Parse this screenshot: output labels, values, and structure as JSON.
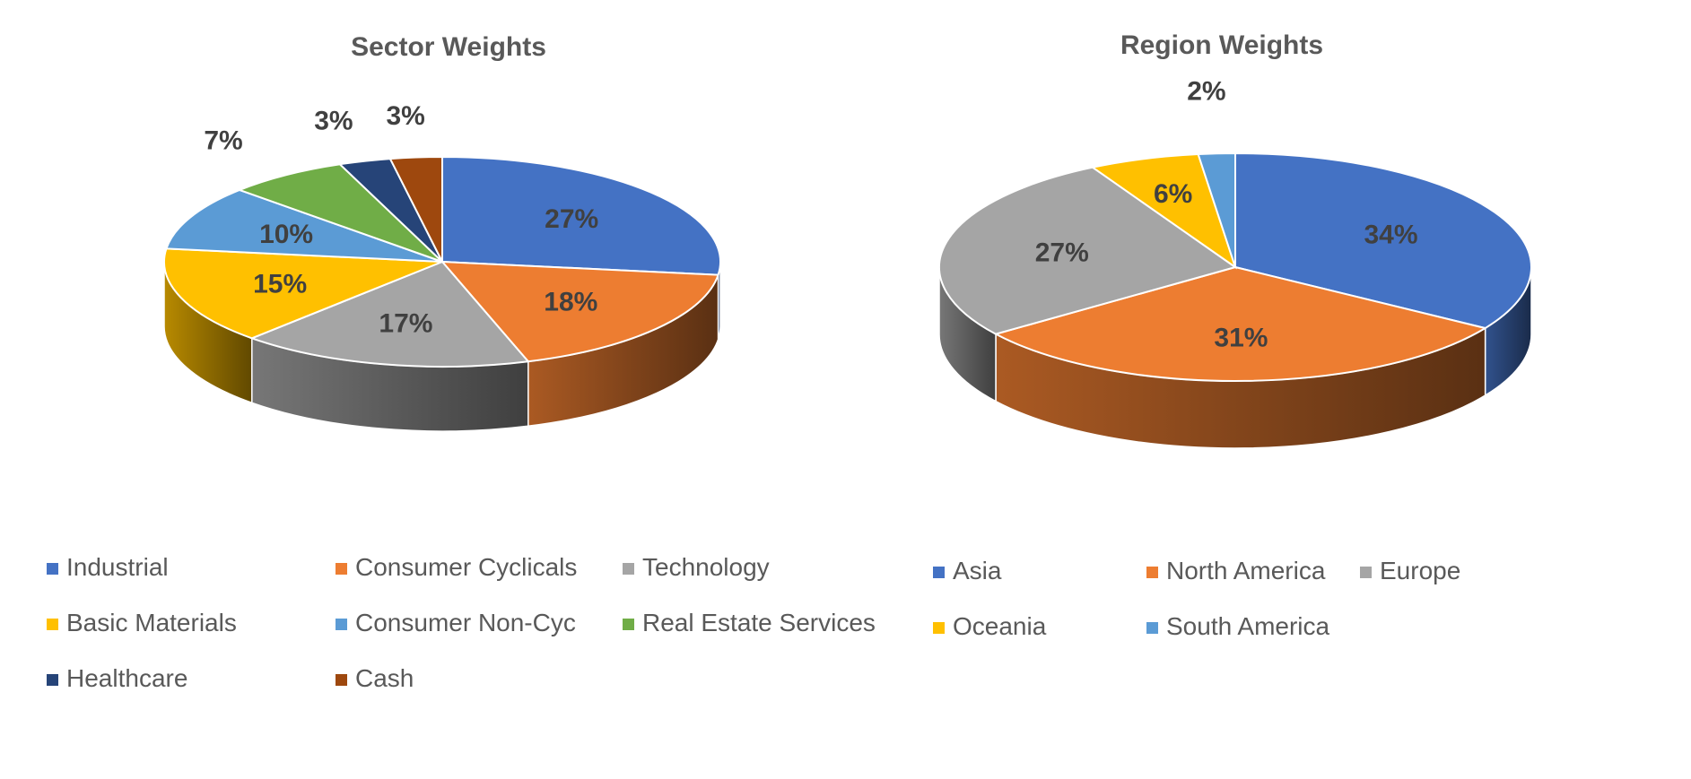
{
  "chart_data": [
    {
      "type": "pie",
      "title": "Sector Weights",
      "slices": [
        {
          "label": "Industrial",
          "value": 27,
          "display": "27%",
          "color": "#4472C4"
        },
        {
          "label": "Consumer Cyclicals",
          "value": 18,
          "display": "18%",
          "color": "#ED7D31"
        },
        {
          "label": "Technology",
          "value": 17,
          "display": "17%",
          "color": "#A5A5A5"
        },
        {
          "label": "Basic Materials",
          "value": 15,
          "display": "15%",
          "color": "#FFC000"
        },
        {
          "label": "Consumer Non-Cyc",
          "value": 10,
          "display": "10%",
          "color": "#5B9BD5"
        },
        {
          "label": "Real Estate Services",
          "value": 7,
          "display": "7%",
          "color": "#70AD47"
        },
        {
          "label": "Healthcare",
          "value": 3,
          "display": "3%",
          "color": "#264478"
        },
        {
          "label": "Cash",
          "value": 3,
          "display": "3%",
          "color": "#9E480E"
        }
      ],
      "legend_position": "bottom"
    },
    {
      "type": "pie",
      "title": "Region Weights",
      "slices": [
        {
          "label": "Asia",
          "value": 34,
          "display": "34%",
          "color": "#4472C4"
        },
        {
          "label": "North America",
          "value": 31,
          "display": "31%",
          "color": "#ED7D31"
        },
        {
          "label": "Europe",
          "value": 27,
          "display": "27%",
          "color": "#A5A5A5"
        },
        {
          "label": "Oceania",
          "value": 6,
          "display": "6%",
          "color": "#FFC000"
        },
        {
          "label": "South America",
          "value": 2,
          "display": "2%",
          "color": "#5B9BD5"
        }
      ],
      "legend_position": "bottom"
    }
  ]
}
